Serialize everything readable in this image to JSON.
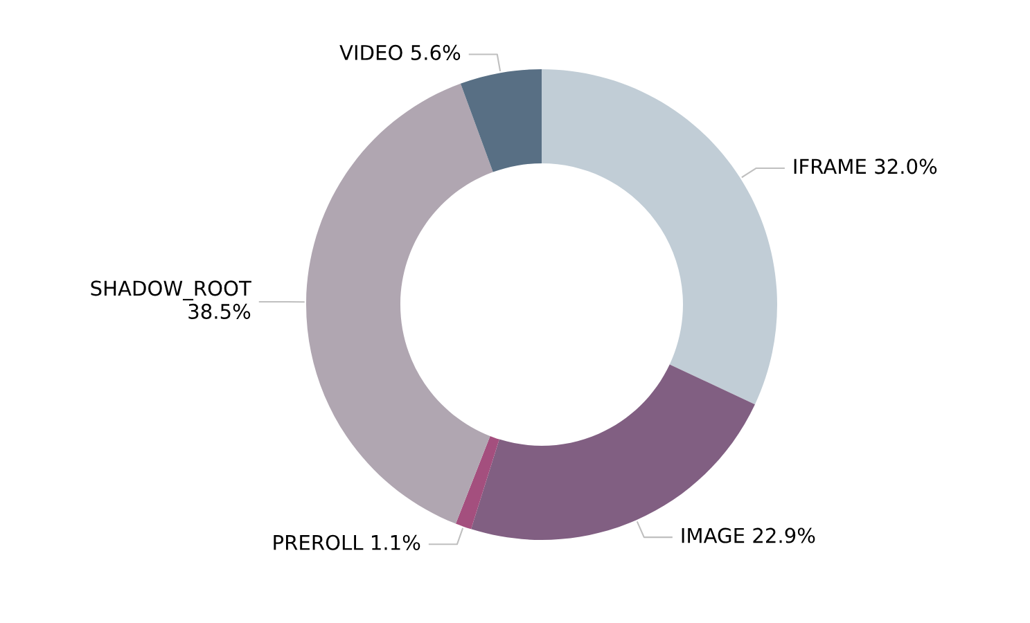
{
  "chart_data": {
    "type": "donut",
    "categories": [
      "IFRAME",
      "IMAGE",
      "PREROLL",
      "SHADOW_ROOT",
      "VIDEO"
    ],
    "values": [
      32.0,
      22.9,
      1.1,
      38.5,
      5.6
    ],
    "colors": [
      "#c1cdd6",
      "#815f82",
      "#a44f7e",
      "#b0a6b1",
      "#586f84"
    ],
    "value_labels": [
      "32.0%",
      "22.9%",
      "1.1%",
      "38.5%",
      "5.6%"
    ],
    "legend": false
  }
}
